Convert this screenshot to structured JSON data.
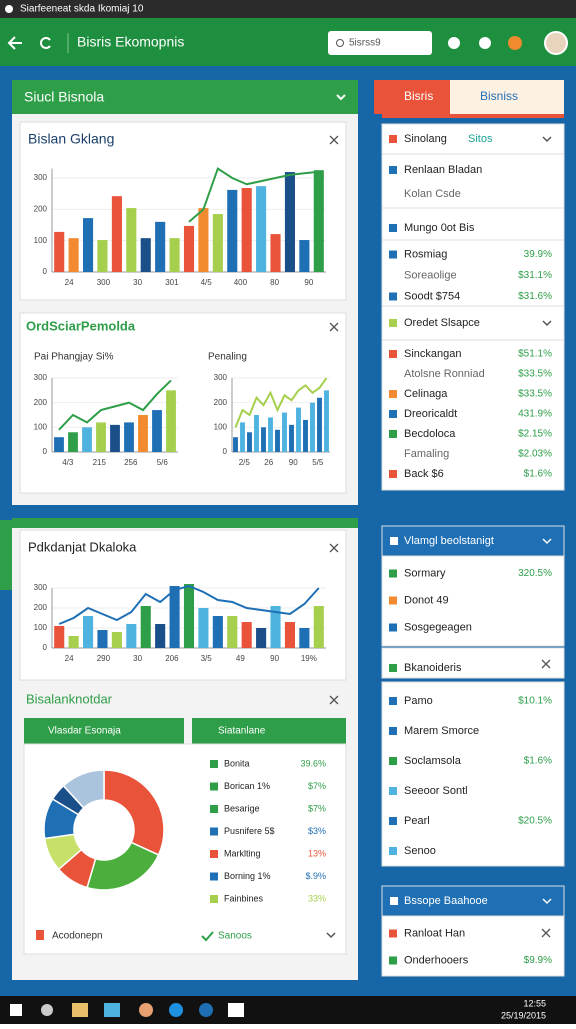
{
  "window": {
    "tab": "Siarfeeneat skda Ikomiaj 10"
  },
  "appbar": {
    "title": "Bisris Ekomopnis",
    "search": "5isrss9"
  },
  "left": {
    "panel1": {
      "title": "Siucl Bisnola",
      "chart1": {
        "title": "Bislan Gklang",
        "ylim": [
          0,
          330
        ],
        "yticks": [
          0,
          100,
          200,
          300
        ],
        "xlabels": [
          "24",
          "300",
          "30",
          "301",
          "4/5",
          "400",
          "80",
          "90"
        ],
        "values": [
          128,
          108,
          172,
          102,
          242,
          204,
          108,
          160,
          108,
          147,
          204,
          185,
          262,
          268,
          274,
          121,
          319,
          102,
          325
        ],
        "colors": [
          "#e8533a",
          "#f28b30",
          "#1f6fb5",
          "#a5cf4c",
          "#e8533a",
          "#a5cf4c",
          "#1b4f8a",
          "#1f6fb5",
          "#a5cf4c",
          "#e8533a",
          "#f28b30",
          "#a5cf4c",
          "#1f6fb5",
          "#e8533a",
          "#4fb3e0",
          "#e8533a",
          "#1b4f8a",
          "#1f6fb5",
          "#2e9e48"
        ],
        "line": [
          null,
          null,
          null,
          null,
          null,
          null,
          null,
          null,
          null,
          160,
          200,
          330,
          300,
          280,
          290,
          300,
          310,
          315,
          320
        ],
        "line_color": "#2e9e48"
      },
      "chart2": {
        "title": "OrdSciarPemolda",
        "left": {
          "title": "Pai Phangjay Si%",
          "ylim": [
            0,
            300
          ],
          "yticks": [
            0,
            100,
            200,
            300
          ],
          "xlabels": [
            "4/3",
            "215",
            "256",
            "5/6"
          ],
          "values": [
            60,
            80,
            100,
            120,
            110,
            120,
            150,
            170,
            250
          ],
          "colors": [
            "#1f6fb5",
            "#2e9e48",
            "#4fb3e0",
            "#a5cf4c",
            "#1b4f8a",
            "#1f6fb5",
            "#f28b30",
            "#1f6fb5",
            "#a5cf4c"
          ],
          "line": [
            90,
            150,
            120,
            170,
            185,
            200,
            170,
            235,
            290
          ],
          "line_color": "#2e9e48"
        },
        "right": {
          "title": "Penaling",
          "ylim": [
            0,
            300
          ],
          "yticks": [
            0,
            100,
            200,
            300
          ],
          "xlabels": [
            "2/5",
            "26",
            "90",
            "5/5"
          ],
          "values": [
            60,
            120,
            80,
            150,
            100,
            140,
            90,
            160,
            110,
            180,
            130,
            200,
            220,
            250
          ],
          "colors": [
            "#1f6fb5",
            "#4fb3e0",
            "#1f6fb5",
            "#4fb3e0",
            "#1f6fb5",
            "#4fb3e0",
            "#1f6fb5",
            "#4fb3e0",
            "#1f6fb5",
            "#4fb3e0",
            "#1f6fb5",
            "#4fb3e0",
            "#1f6fb5",
            "#4fb3e0"
          ],
          "line": [
            100,
            170,
            150,
            220,
            190,
            240,
            170,
            230,
            210,
            250,
            270,
            240,
            260,
            300
          ],
          "line_color": "#a5cf4c"
        }
      }
    },
    "panel2": {
      "chart3": {
        "title": "Pdkdanjat Dkaloka",
        "ylim": [
          0,
          300
        ],
        "yticks": [
          0,
          100,
          200,
          300
        ],
        "xlabels": [
          "24",
          "290",
          "30",
          "206",
          "3/5",
          "49",
          "90",
          "19%"
        ],
        "values": [
          110,
          60,
          160,
          90,
          80,
          120,
          210,
          120,
          310,
          320,
          200,
          160,
          160,
          130,
          100,
          210,
          130,
          100,
          210
        ],
        "colors": [
          "#e8533a",
          "#a5cf4c",
          "#4fb3e0",
          "#1f6fb5",
          "#a5cf4c",
          "#4fb3e0",
          "#2e9e48",
          "#1b4f8a",
          "#1f6fb5",
          "#2e9e48",
          "#4fb3e0",
          "#1f6fb5",
          "#a5cf4c",
          "#e8533a",
          "#1b4f8a",
          "#4fb3e0",
          "#e8533a",
          "#1f6fb5",
          "#a5cf4c"
        ],
        "line": [
          120,
          150,
          200,
          170,
          140,
          180,
          270,
          230,
          290,
          310,
          280,
          240,
          230,
          200,
          190,
          180,
          170,
          220,
          300
        ],
        "line_color": "#1f6fb5"
      },
      "donut": {
        "title": "Bisalanknotdar",
        "tab1": "Vlasdar Esonaja",
        "tab2": "Siatanlane",
        "values": [
          35,
          25,
          10,
          10,
          12,
          5,
          13
        ],
        "colors": [
          "#e8533a",
          "#4caf3d",
          "#e8533a",
          "#c6e06a",
          "#1f6fb5",
          "#1b4f8a",
          "#a9c4dc"
        ],
        "legend": [
          {
            "label": "Bonita",
            "value": "39.6%",
            "color": "#2e9e48"
          },
          {
            "label": "Borican 1%",
            "value": "$7%",
            "color": "#2e9e48"
          },
          {
            "label": "Besarige",
            "value": "$7%",
            "color": "#2e9e48"
          },
          {
            "label": "Pusnifere 5$",
            "value": "$3%",
            "color": "#1f6fb5"
          },
          {
            "label": "Marklting",
            "value": "13%",
            "color": "#e8533a"
          },
          {
            "label": "Borning 1%",
            "value": "$.9%",
            "color": "#1f6fb5"
          },
          {
            "label": "Fainbines",
            "value": "33%",
            "color": "#a5cf4c"
          }
        ],
        "footer_left": "Acodonepn",
        "footer_right": "Sanoos"
      }
    }
  },
  "right": {
    "tab1": "Bisris",
    "tab2": "Bisniss",
    "groups": [
      {
        "title": "Sinolang",
        "tag": "Sitos"
      },
      {
        "items": [
          {
            "label": "Renlaan Bladan",
            "color": "#1f6fb5"
          },
          {
            "label": "Kolan Csde"
          }
        ]
      },
      {
        "items": [
          {
            "label": "Mungo 0ot Bis",
            "color": "#1f6fb5"
          }
        ]
      },
      {
        "items": [
          {
            "label": "Rosmiag",
            "value": "39.9%",
            "color": "#1f6fb5"
          },
          {
            "label": "Soreaolige",
            "value": "$31.1%"
          },
          {
            "label": "Soodt $754",
            "value": "$31.6%",
            "color": "#1f6fb5"
          }
        ]
      },
      {
        "title": "Oredet Slsapce",
        "color": "#a5cf4c"
      },
      {
        "items": [
          {
            "label": "Sinckangan",
            "value": "$51.1%",
            "color": "#e8533a"
          },
          {
            "label": "Atolsne Ronniad",
            "value": "$33.5%"
          },
          {
            "label": "Celinaga",
            "value": "$33.5%",
            "color": "#f28b30"
          },
          {
            "label": "Dreoricaldt",
            "value": "431.9%",
            "color": "#1f6fb5"
          },
          {
            "label": "Becdoloca",
            "value": "$2.15%",
            "color": "#2e9e48"
          },
          {
            "label": "Famaling",
            "value": "$2.03%"
          },
          {
            "label": "Back $6",
            "value": "$1.6%",
            "color": "#e8533a"
          }
        ]
      },
      {
        "title": "Vlamgl beolstanigt",
        "color": "#1f6fb5"
      },
      {
        "items": [
          {
            "label": "Sormary",
            "value": "320.5%",
            "color": "#2e9e48"
          },
          {
            "label": "Donot 49",
            "color": "#f28b30"
          },
          {
            "label": "Sosgegeagen",
            "color": "#1f6fb5"
          }
        ]
      },
      {
        "items": [
          {
            "label": "Bkanoideris",
            "color": "#2e9e48"
          }
        ]
      },
      {
        "items": [
          {
            "label": "Pamo",
            "value": "$10.1%",
            "color": "#1f6fb5"
          },
          {
            "label": "Marem Smorce",
            "color": "#1f6fb5"
          },
          {
            "label": "Soclamsola",
            "value": "$1.6%",
            "color": "#2e9e48"
          },
          {
            "label": "Seeoor Sontl",
            "color": "#4fb3e0"
          },
          {
            "label": "Pearl",
            "value": "$20.5%",
            "color": "#1f6fb5"
          },
          {
            "label": "Senoo",
            "color": "#4fb3e0"
          }
        ]
      },
      {
        "title": "Bssope Baahooe",
        "color": "#1f6fb5"
      },
      {
        "items": [
          {
            "label": "Ranloat Han",
            "color": "#e8533a"
          },
          {
            "label": "Onderhooers",
            "value": "$9.9%",
            "color": "#2e9e48"
          }
        ]
      }
    ]
  },
  "taskbar": {
    "time": "12:55",
    "date": "25/19/2015"
  }
}
